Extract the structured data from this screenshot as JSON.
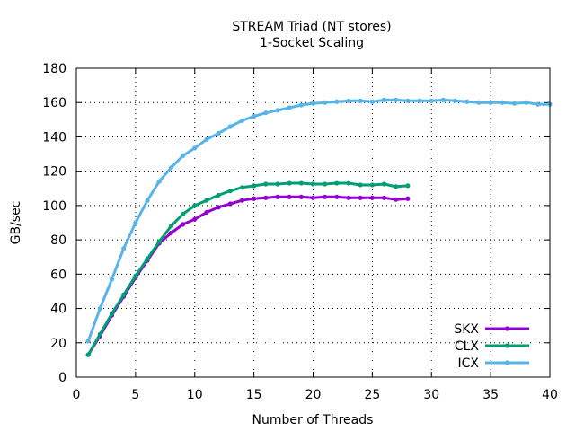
{
  "chart_data": {
    "type": "line",
    "title": "STREAM Triad (NT stores)",
    "subtitle": "1-Socket Scaling",
    "xlabel": "Number of Threads",
    "ylabel": "GB/sec",
    "xlim": [
      0,
      40
    ],
    "ylim": [
      0,
      180
    ],
    "xticks": [
      0,
      5,
      10,
      15,
      20,
      25,
      30,
      35,
      40
    ],
    "yticks": [
      0,
      20,
      40,
      60,
      80,
      100,
      120,
      140,
      160,
      180
    ],
    "grid": true,
    "legend_position": "bottom-right",
    "series": [
      {
        "name": "SKX",
        "color": "#9400d3",
        "x": [
          1,
          2,
          3,
          4,
          5,
          6,
          7,
          8,
          9,
          10,
          11,
          12,
          13,
          14,
          15,
          16,
          17,
          18,
          19,
          20,
          21,
          22,
          23,
          24,
          25,
          26,
          27,
          28
        ],
        "values": [
          13,
          24,
          36,
          47,
          58,
          68,
          78,
          84,
          89,
          92,
          96,
          99,
          101,
          103,
          104,
          104.5,
          105,
          105,
          105,
          104.5,
          105,
          105,
          104.5,
          104.5,
          104.5,
          104.5,
          103.5,
          104
        ]
      },
      {
        "name": "CLX",
        "color": "#009e73",
        "x": [
          1,
          2,
          3,
          4,
          5,
          6,
          7,
          8,
          9,
          10,
          11,
          12,
          13,
          14,
          15,
          16,
          17,
          18,
          19,
          20,
          21,
          22,
          23,
          24,
          25,
          26,
          27,
          28
        ],
        "values": [
          13,
          25,
          37,
          48,
          59,
          69,
          79,
          88,
          95,
          100,
          103,
          106,
          108.5,
          110.5,
          111.5,
          112.5,
          112.5,
          113,
          113,
          112.5,
          112.5,
          113,
          113,
          112,
          112,
          112.5,
          111,
          111.5
        ]
      },
      {
        "name": "ICX",
        "color": "#56b4e9",
        "x": [
          1,
          2,
          3,
          4,
          5,
          6,
          7,
          8,
          9,
          10,
          11,
          12,
          13,
          14,
          15,
          16,
          17,
          18,
          19,
          20,
          21,
          22,
          23,
          24,
          25,
          26,
          27,
          28,
          29,
          30,
          31,
          32,
          33,
          34,
          35,
          36,
          37,
          38,
          39,
          40
        ],
        "values": [
          21,
          40,
          57,
          75,
          90,
          103,
          114,
          122,
          129,
          133.5,
          138.5,
          142,
          146,
          149.5,
          152,
          154,
          155.5,
          157,
          158.5,
          159.5,
          160,
          160.5,
          161,
          161,
          160.5,
          161.5,
          161.5,
          161,
          161,
          161,
          161.5,
          161,
          160.5,
          160,
          160,
          160,
          159.5,
          160,
          159,
          159
        ]
      }
    ]
  }
}
